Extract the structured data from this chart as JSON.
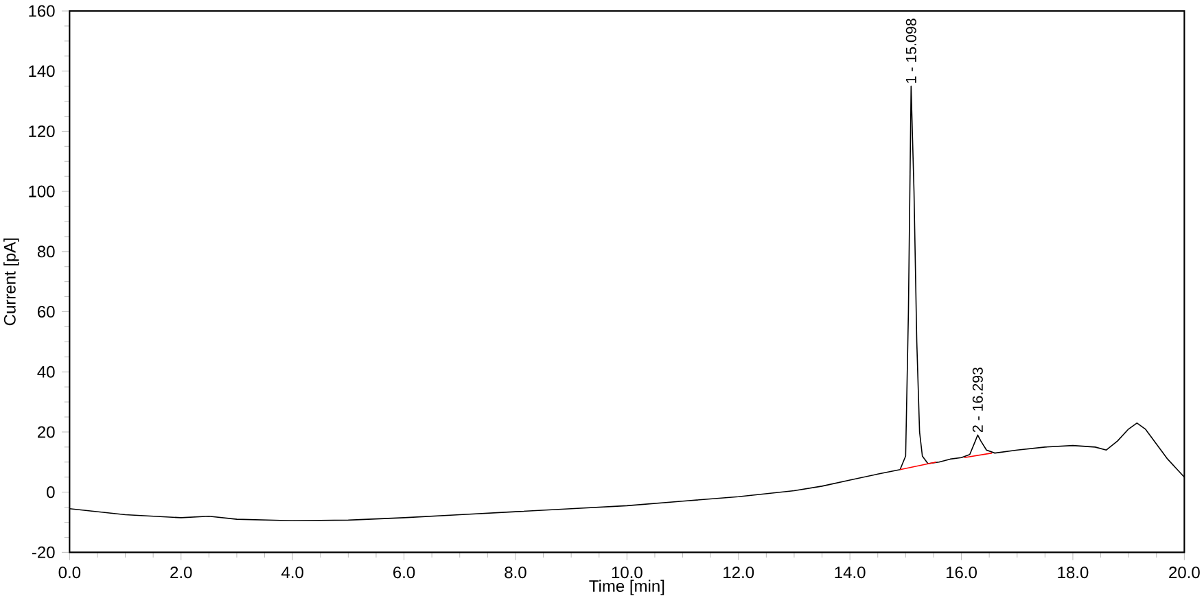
{
  "chart_data": {
    "type": "line",
    "xlabel": "Time [min]",
    "ylabel": "Current [pA]",
    "xlim": [
      0,
      20
    ],
    "ylim": [
      -20,
      160
    ],
    "xticks": [
      {
        "value": 0,
        "label": "0.0"
      },
      {
        "value": 2,
        "label": "2.0"
      },
      {
        "value": 4,
        "label": "4.0"
      },
      {
        "value": 6,
        "label": "6.0"
      },
      {
        "value": 8,
        "label": "8.0"
      },
      {
        "value": 10,
        "label": "10.0"
      },
      {
        "value": 12,
        "label": "12.0"
      },
      {
        "value": 14,
        "label": "14.0"
      },
      {
        "value": 16,
        "label": "16.0"
      },
      {
        "value": 18,
        "label": "18.0"
      },
      {
        "value": 20,
        "label": "20.0"
      }
    ],
    "yticks": [
      -20,
      0,
      20,
      40,
      60,
      80,
      100,
      120,
      140,
      160
    ],
    "grid": false,
    "series": [
      {
        "color": "#000000",
        "x": [
          0,
          1,
          2,
          2.5,
          3,
          4,
          5,
          6,
          7,
          8,
          9,
          10,
          11,
          12,
          13,
          13.5,
          14,
          14.5,
          14.9,
          15.0,
          15.05,
          15.098,
          15.15,
          15.2,
          15.25,
          15.3,
          15.4,
          15.6,
          15.8,
          16.0,
          16.15,
          16.25,
          16.293,
          16.35,
          16.45,
          16.6,
          17.0,
          17.5,
          18.0,
          18.4,
          18.6,
          18.8,
          19.0,
          19.15,
          19.3,
          19.5,
          19.7,
          19.9,
          20
        ],
        "values": [
          -5.5,
          -7.5,
          -8.5,
          -8,
          -9,
          -9.5,
          -9.3,
          -8.5,
          -7.5,
          -6.5,
          -5.5,
          -4.5,
          -3,
          -1.5,
          0.5,
          2,
          4,
          6,
          7.5,
          12,
          60,
          135,
          100,
          50,
          20,
          12,
          9.5,
          10,
          11,
          11.5,
          12.5,
          17,
          19,
          17,
          14,
          13,
          14,
          15,
          15.5,
          15,
          14,
          17,
          21,
          23,
          21,
          16,
          11,
          7,
          5
        ]
      },
      {
        "color": "#ff0000",
        "x": [
          14.9,
          15.55
        ],
        "values": [
          7.5,
          10
        ]
      },
      {
        "color": "#ff0000",
        "x": [
          16.05,
          16.55
        ],
        "values": [
          11.5,
          13
        ]
      }
    ],
    "annotations": [
      {
        "text": "1 - 15.098",
        "x": 15.098,
        "y": 135
      },
      {
        "text": "2 - 16.293",
        "x": 16.293,
        "y": 19
      }
    ]
  }
}
